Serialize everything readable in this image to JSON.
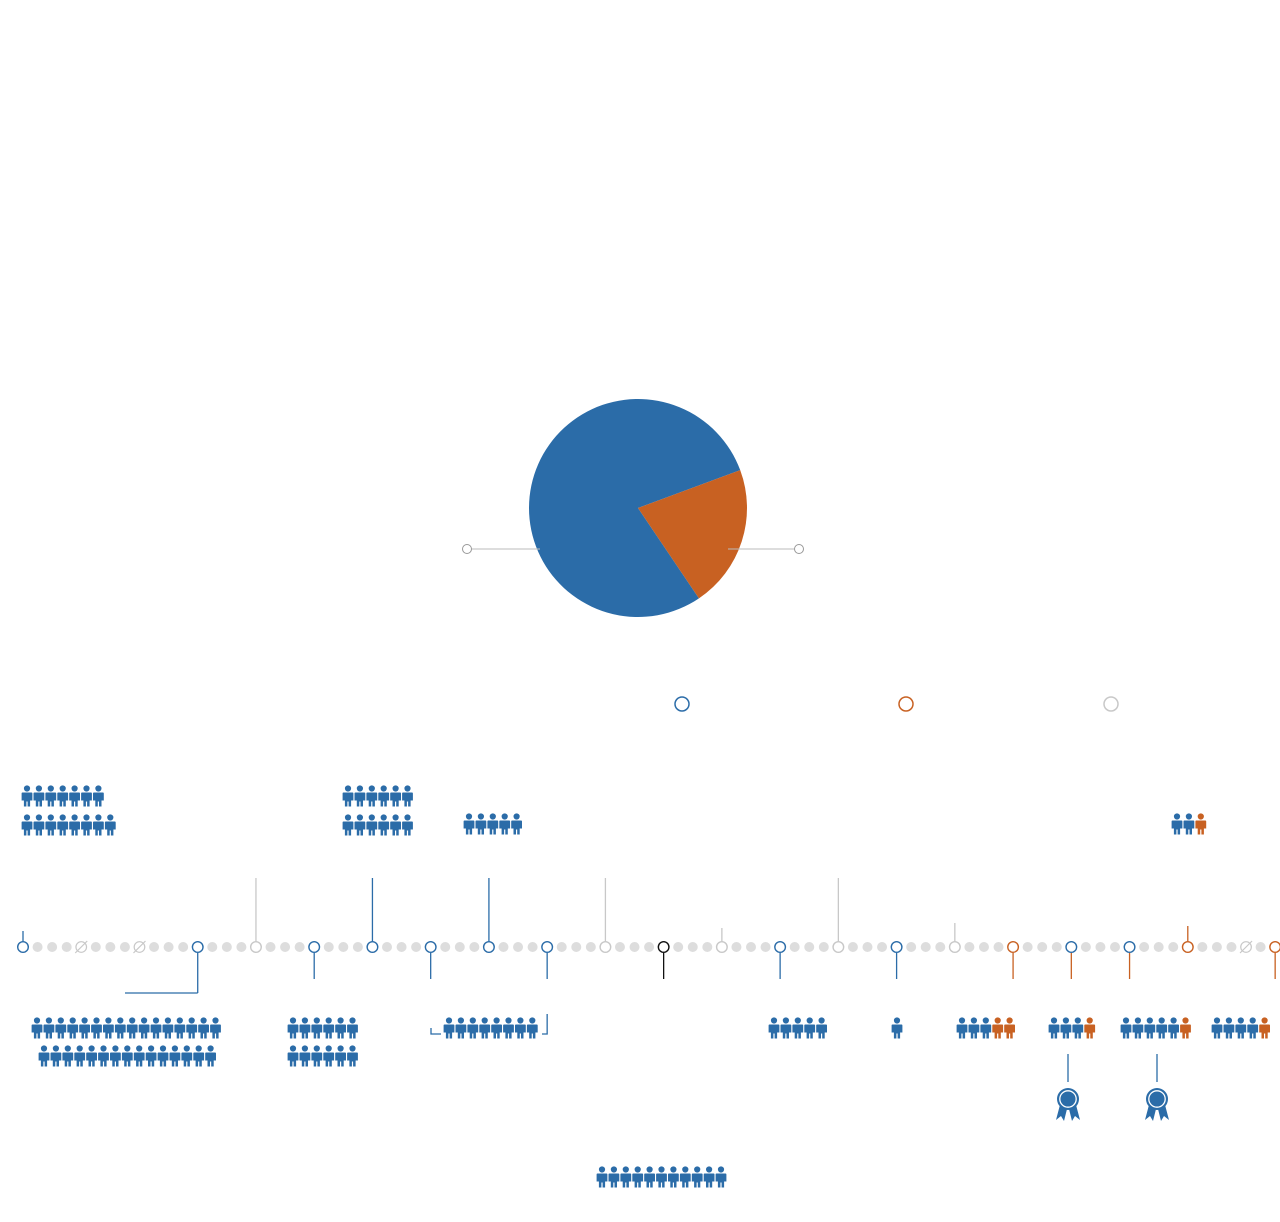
{
  "colors": {
    "blue": "#2b6ca8",
    "orange": "#c86122",
    "gray": "#c8c8c8",
    "dot": "#dddddd",
    "black": "#111111",
    "bg": "#ffffff"
  },
  "icons": {
    "person": "person-icon",
    "award": "award-ribbon-icon",
    "marker": "ring-marker-icon",
    "struck": "struck-circle-icon"
  },
  "chart_data": [
    {
      "type": "pie",
      "slices": [
        {
          "color": "#2b6ca8",
          "value": 78.8
        },
        {
          "color": "#c86122",
          "value": 21.2
        }
      ]
    },
    {
      "type": "timeline",
      "dot_count": 87,
      "legend": [
        {
          "color": "#2b6ca8"
        },
        {
          "color": "#c86122"
        },
        {
          "color": "#c8c8c8"
        }
      ],
      "events": [
        {
          "index": 0,
          "kind": "ring",
          "color": "blue"
        },
        {
          "index": 4,
          "kind": "struck",
          "color": "gray"
        },
        {
          "index": 8,
          "kind": "struck",
          "color": "gray"
        },
        {
          "index": 12,
          "kind": "ring",
          "color": "blue"
        },
        {
          "index": 16,
          "kind": "ring",
          "color": "gray"
        },
        {
          "index": 20,
          "kind": "ring",
          "color": "blue"
        },
        {
          "index": 24,
          "kind": "ring",
          "color": "blue"
        },
        {
          "index": 28,
          "kind": "ring",
          "color": "blue"
        },
        {
          "index": 32,
          "kind": "ring",
          "color": "blue"
        },
        {
          "index": 36,
          "kind": "ring",
          "color": "blue"
        },
        {
          "index": 40,
          "kind": "ring",
          "color": "gray"
        },
        {
          "index": 44,
          "kind": "ring",
          "color": "black"
        },
        {
          "index": 48,
          "kind": "ring",
          "color": "gray"
        },
        {
          "index": 52,
          "kind": "ring",
          "color": "blue"
        },
        {
          "index": 56,
          "kind": "ring",
          "color": "gray"
        },
        {
          "index": 60,
          "kind": "ring",
          "color": "blue"
        },
        {
          "index": 64,
          "kind": "ring",
          "color": "gray"
        },
        {
          "index": 68,
          "kind": "ring",
          "color": "orange"
        },
        {
          "index": 72,
          "kind": "ring",
          "color": "blue"
        },
        {
          "index": 76,
          "kind": "ring",
          "color": "blue"
        },
        {
          "index": 80,
          "kind": "ring",
          "color": "orange"
        },
        {
          "index": 84,
          "kind": "struck",
          "color": "gray"
        },
        {
          "index": 86,
          "kind": "ring",
          "color": "orange"
        }
      ],
      "groups": [
        {
          "event": 0,
          "side": "above",
          "rows": [
            7,
            8
          ]
        },
        {
          "event": 12,
          "side": "below",
          "rows": [
            16,
            15
          ]
        },
        {
          "event": 20,
          "side": "below",
          "rows": [
            6,
            6
          ]
        },
        {
          "event": 24,
          "side": "above",
          "rows": [
            6,
            6
          ]
        },
        {
          "event": 28,
          "side": "below",
          "rows": [
            8
          ]
        },
        {
          "event": 32,
          "side": "above",
          "rows": [
            5
          ]
        },
        {
          "event": 44,
          "side": "below",
          "rows": [
            11
          ]
        },
        {
          "event": 52,
          "side": "below",
          "rows": [
            5
          ]
        },
        {
          "event": 60,
          "side": "below",
          "rows": [
            1
          ]
        },
        {
          "event": 68,
          "side": "below",
          "blue": 3,
          "orange": 2
        },
        {
          "event": 72,
          "side": "below",
          "blue": 3,
          "orange": 1,
          "award": true
        },
        {
          "event": 76,
          "side": "below",
          "blue": 5,
          "orange": 1,
          "award": true
        },
        {
          "event": 80,
          "side": "above",
          "blue": 2,
          "orange": 1
        },
        {
          "event": 86,
          "side": "below",
          "blue": 4,
          "orange": 1
        }
      ]
    }
  ]
}
